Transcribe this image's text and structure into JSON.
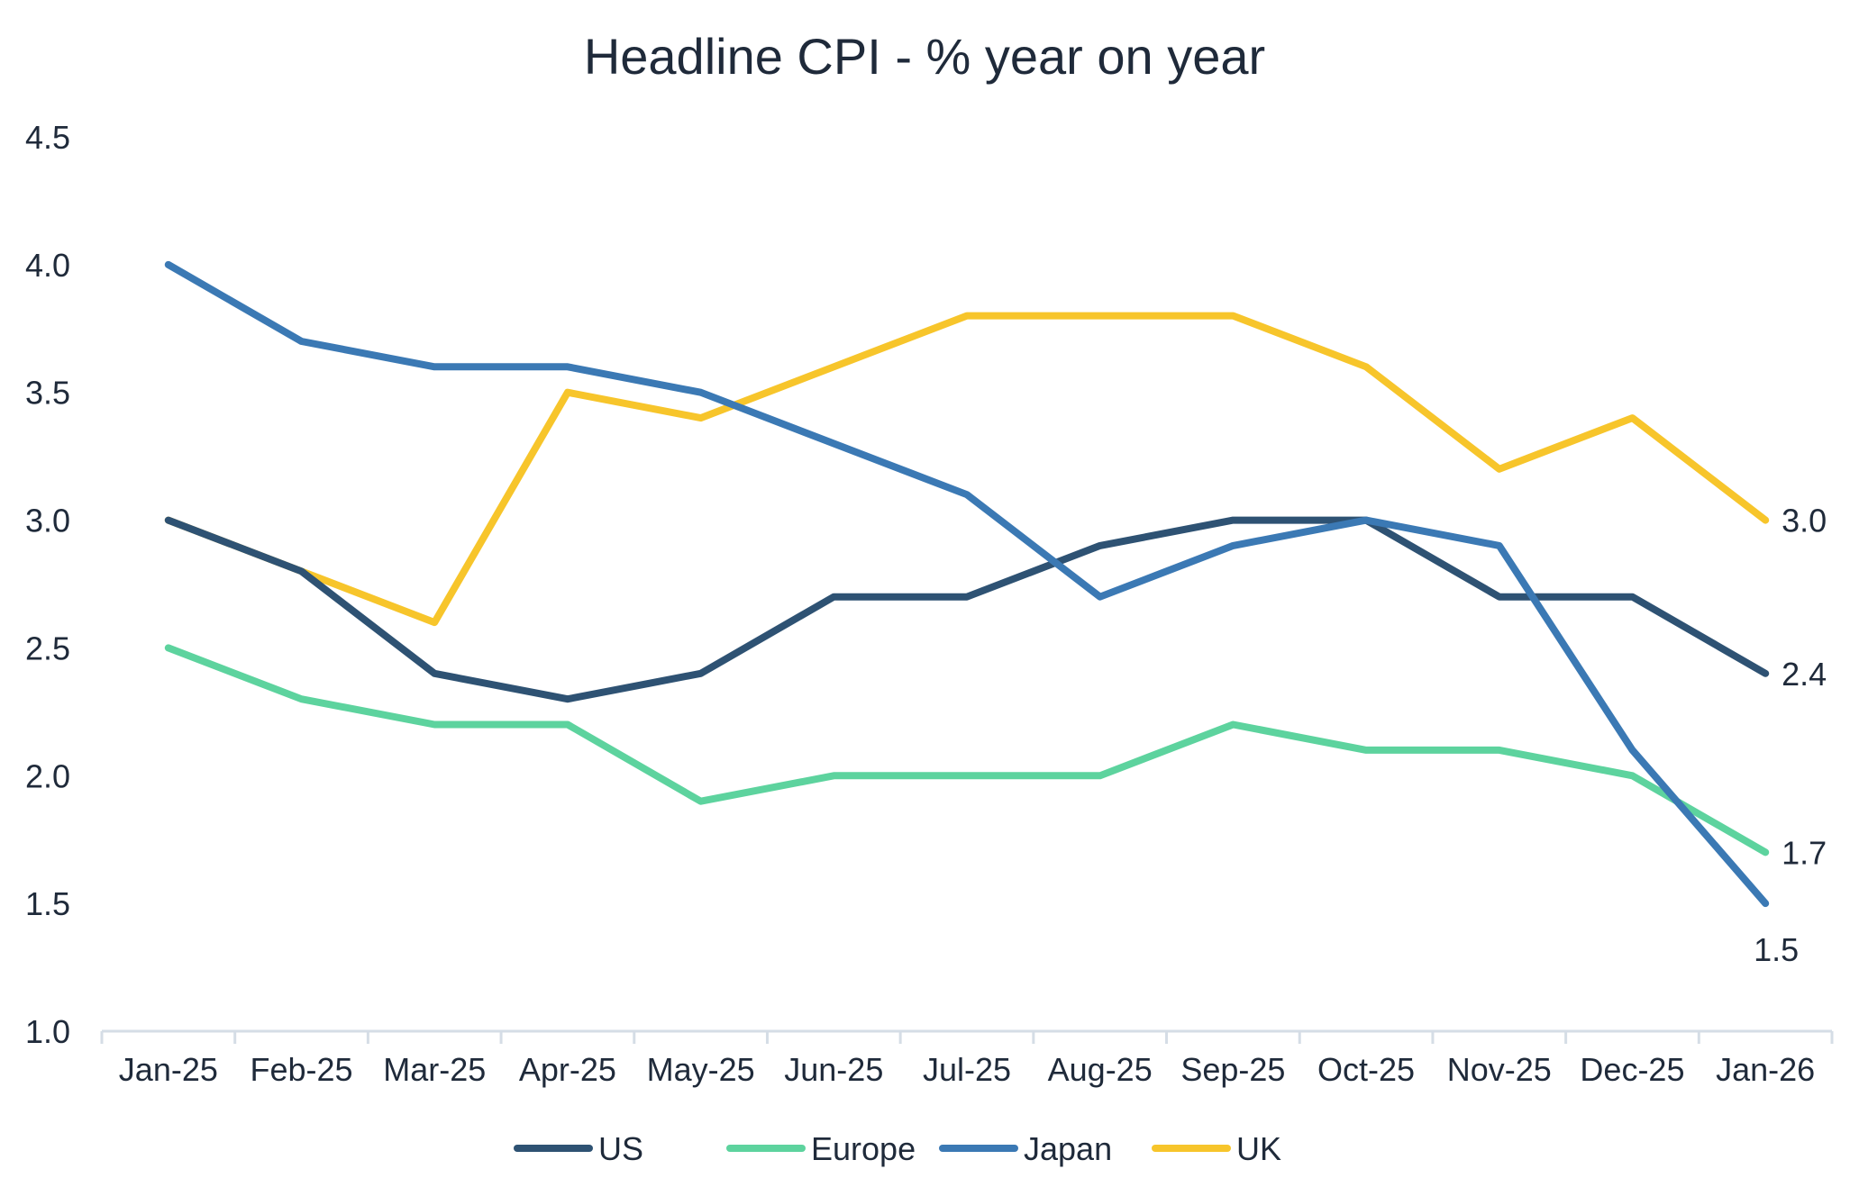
{
  "chart_data": {
    "type": "line",
    "title": "Headline CPI - % year on year",
    "xlabel": "",
    "ylabel": "",
    "ylim": [
      1.0,
      4.5
    ],
    "yticks": [
      "1.0",
      "1.5",
      "2.0",
      "2.5",
      "3.0",
      "3.5",
      "4.0",
      "4.5"
    ],
    "categories": [
      "Jan-25",
      "Feb-25",
      "Mar-25",
      "Apr-25",
      "May-25",
      "Jun-25",
      "Jul-25",
      "Aug-25",
      "Sep-25",
      "Oct-25",
      "Nov-25",
      "Dec-25",
      "Jan-26"
    ],
    "grid": false,
    "legend_position": "bottom",
    "series": [
      {
        "name": "US",
        "color": "#2e5273",
        "values": [
          3.0,
          2.8,
          2.4,
          2.3,
          2.4,
          2.7,
          2.7,
          2.9,
          3.0,
          3.0,
          2.7,
          2.7,
          2.4
        ],
        "end_label": "2.4"
      },
      {
        "name": "Europe",
        "color": "#5dd39e",
        "values": [
          2.5,
          2.3,
          2.2,
          2.2,
          1.9,
          2.0,
          2.0,
          2.0,
          2.2,
          2.1,
          2.1,
          2.0,
          1.7
        ],
        "end_label": "1.7"
      },
      {
        "name": "Japan",
        "color": "#3b79b4",
        "values": [
          4.0,
          3.7,
          3.6,
          3.6,
          3.5,
          3.3,
          3.1,
          2.7,
          2.9,
          3.0,
          2.9,
          2.1,
          1.5
        ],
        "end_label": "1.5"
      },
      {
        "name": "UK",
        "color": "#f7c52b",
        "values": [
          3.0,
          2.8,
          2.6,
          3.5,
          3.4,
          3.6,
          3.8,
          3.8,
          3.8,
          3.6,
          3.2,
          3.4,
          3.0
        ],
        "end_label": "3.0"
      }
    ]
  }
}
